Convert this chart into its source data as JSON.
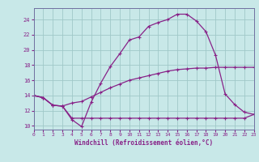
{
  "xlabel": "Windchill (Refroidissement éolien,°C)",
  "bg_color": "#c8e8e8",
  "grid_color": "#a0c8c8",
  "line_color": "#882288",
  "spine_color": "#7070a0",
  "xlim": [
    0,
    23
  ],
  "ylim": [
    9.5,
    25.5
  ],
  "xticks": [
    0,
    1,
    2,
    3,
    4,
    5,
    6,
    7,
    8,
    9,
    10,
    11,
    12,
    13,
    14,
    15,
    16,
    17,
    18,
    19,
    20,
    21,
    22,
    23
  ],
  "yticks": [
    10,
    12,
    14,
    16,
    18,
    20,
    22,
    24
  ],
  "line1_x": [
    0,
    1,
    2,
    3,
    4,
    5,
    6,
    7,
    8,
    9,
    10,
    11,
    12,
    13,
    14,
    15,
    16,
    17,
    18,
    19,
    20,
    21,
    22,
    23
  ],
  "line1_y": [
    14.0,
    13.7,
    12.7,
    12.6,
    13.0,
    13.2,
    13.8,
    14.4,
    15.0,
    15.5,
    16.0,
    16.3,
    16.6,
    16.9,
    17.2,
    17.4,
    17.5,
    17.6,
    17.6,
    17.7,
    17.7,
    17.7,
    17.7,
    17.7
  ],
  "line2_x": [
    0,
    1,
    2,
    3,
    4,
    5,
    6,
    7,
    8,
    9,
    10,
    11,
    12,
    13,
    14,
    15,
    16,
    17,
    18,
    19,
    20,
    21,
    22,
    23
  ],
  "line2_y": [
    14.0,
    13.7,
    12.7,
    12.6,
    10.8,
    9.9,
    13.1,
    15.6,
    17.8,
    19.5,
    21.3,
    21.7,
    23.1,
    23.6,
    24.0,
    24.7,
    24.7,
    23.8,
    22.4,
    19.3,
    14.2,
    12.8,
    11.8,
    11.5
  ],
  "line3_x": [
    0,
    1,
    2,
    3,
    4,
    5,
    6,
    7,
    8,
    9,
    10,
    11,
    12,
    13,
    14,
    15,
    16,
    17,
    18,
    19,
    20,
    21,
    22,
    23
  ],
  "line3_y": [
    14.0,
    13.7,
    12.7,
    12.6,
    11.0,
    11.0,
    11.0,
    11.0,
    11.0,
    11.0,
    11.0,
    11.0,
    11.0,
    11.0,
    11.0,
    11.0,
    11.0,
    11.0,
    11.0,
    11.0,
    11.0,
    11.0,
    11.0,
    11.5
  ]
}
